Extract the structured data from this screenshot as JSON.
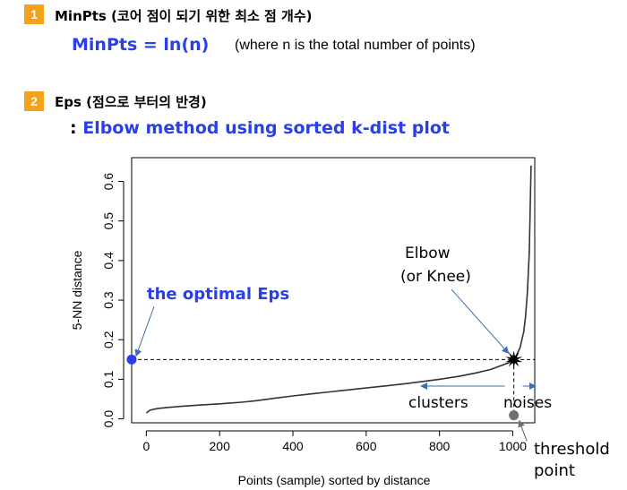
{
  "section1": {
    "number": "1",
    "title": "MinPts (코어 점이 되기 위한 최소 점 개수)",
    "formula": "MinPts = ln(n)",
    "note": "(where n is the total number of points)"
  },
  "section2": {
    "number": "2",
    "title": "Eps (점으로 부터의 반경)",
    "prefix": ": ",
    "method": "Elbow method using sorted k-dist plot"
  },
  "chart_data": {
    "type": "line",
    "xlabel": "Points (sample) sorted by distance",
    "ylabel": "5-NN distance",
    "xlim": [
      -40,
      1060
    ],
    "ylim": [
      -0.01,
      0.66
    ],
    "x_ticks": [
      "0",
      "200",
      "400",
      "600",
      "800",
      "1000"
    ],
    "x_tick_values": [
      0,
      200,
      400,
      600,
      800,
      1000
    ],
    "y_ticks": [
      "0.0",
      "0.1",
      "0.2",
      "0.3",
      "0.4",
      "0.5",
      "0.6"
    ],
    "y_tick_values": [
      0.0,
      0.1,
      0.2,
      0.3,
      0.4,
      0.5,
      0.6
    ],
    "series": [
      {
        "x": [
          0,
          10,
          30,
          60,
          100,
          150,
          200,
          260,
          300,
          350,
          400,
          450,
          500,
          550,
          600,
          650,
          700,
          750,
          800,
          850,
          900,
          940,
          970,
          990,
          1000,
          1010,
          1020,
          1030,
          1035,
          1040,
          1045,
          1050
        ],
        "values": [
          0.015,
          0.022,
          0.026,
          0.029,
          0.032,
          0.035,
          0.038,
          0.042,
          0.046,
          0.052,
          0.058,
          0.063,
          0.068,
          0.073,
          0.078,
          0.083,
          0.088,
          0.094,
          0.1,
          0.107,
          0.116,
          0.125,
          0.135,
          0.142,
          0.15,
          0.16,
          0.18,
          0.22,
          0.26,
          0.32,
          0.42,
          0.64
        ]
      }
    ],
    "eps_value": 0.15,
    "threshold_x": 1003,
    "annotations": {
      "optimal_eps": "the optimal Eps",
      "elbow_line1": "Elbow",
      "elbow_line2": "(or Knee)",
      "clusters": "clusters",
      "noises": "noises",
      "threshold_line1": "threshold",
      "threshold_line2": "point"
    },
    "colors": {
      "accent": "#2a40e6",
      "badge": "#f4a21c",
      "arrow": "#3a6fb0",
      "threshold_dot": "#707070"
    }
  }
}
